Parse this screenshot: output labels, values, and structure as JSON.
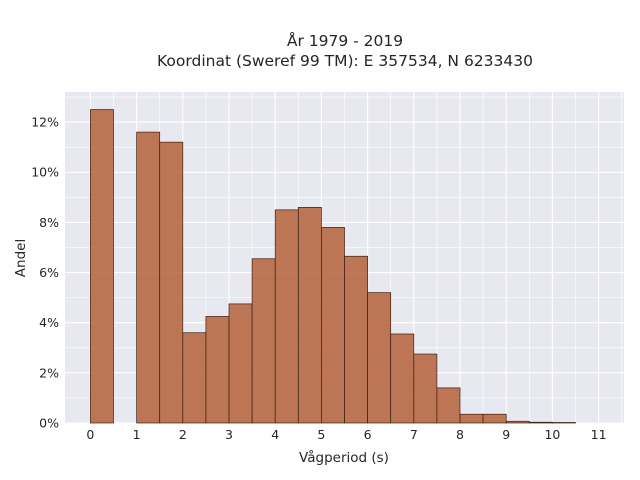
{
  "chart_data": {
    "type": "bar",
    "title_lines": [
      "År 1979 - 2019",
      "Koordinat (Sweref 99 TM): E 357534, N 6233430"
    ],
    "xlabel": "Vågperiod (s)",
    "ylabel": "Andel",
    "bin_width": 0.5,
    "bins": [
      {
        "x0": 0.0,
        "value": 12.5
      },
      {
        "x0": 0.5,
        "value": 0.0
      },
      {
        "x0": 1.0,
        "value": 11.6
      },
      {
        "x0": 1.5,
        "value": 11.2
      },
      {
        "x0": 2.0,
        "value": 3.6
      },
      {
        "x0": 2.5,
        "value": 4.25
      },
      {
        "x0": 3.0,
        "value": 4.75
      },
      {
        "x0": 3.5,
        "value": 6.55
      },
      {
        "x0": 4.0,
        "value": 8.5
      },
      {
        "x0": 4.5,
        "value": 8.6
      },
      {
        "x0": 5.0,
        "value": 7.8
      },
      {
        "x0": 5.5,
        "value": 6.65
      },
      {
        "x0": 6.0,
        "value": 5.2
      },
      {
        "x0": 6.5,
        "value": 3.55
      },
      {
        "x0": 7.0,
        "value": 2.75
      },
      {
        "x0": 7.5,
        "value": 1.4
      },
      {
        "x0": 8.0,
        "value": 0.35
      },
      {
        "x0": 8.5,
        "value": 0.35
      },
      {
        "x0": 9.0,
        "value": 0.07
      },
      {
        "x0": 9.5,
        "value": 0.03
      },
      {
        "x0": 10.0,
        "value": 0.02
      }
    ],
    "xlim": [
      -0.55,
      11.55
    ],
    "ylim": [
      0,
      13.2
    ],
    "xticks": [
      "0",
      "1",
      "2",
      "3",
      "4",
      "5",
      "6",
      "7",
      "8",
      "9",
      "10",
      "11"
    ],
    "yticks": [
      "0%",
      "2%",
      "4%",
      "6%",
      "8%",
      "10%",
      "12%"
    ],
    "grid": true,
    "colors": {
      "bar_fill": "#b5623a",
      "bar_edge": "#3b1f12",
      "plot_bg": "#e8e8f0",
      "grid": "#ffffff"
    }
  }
}
